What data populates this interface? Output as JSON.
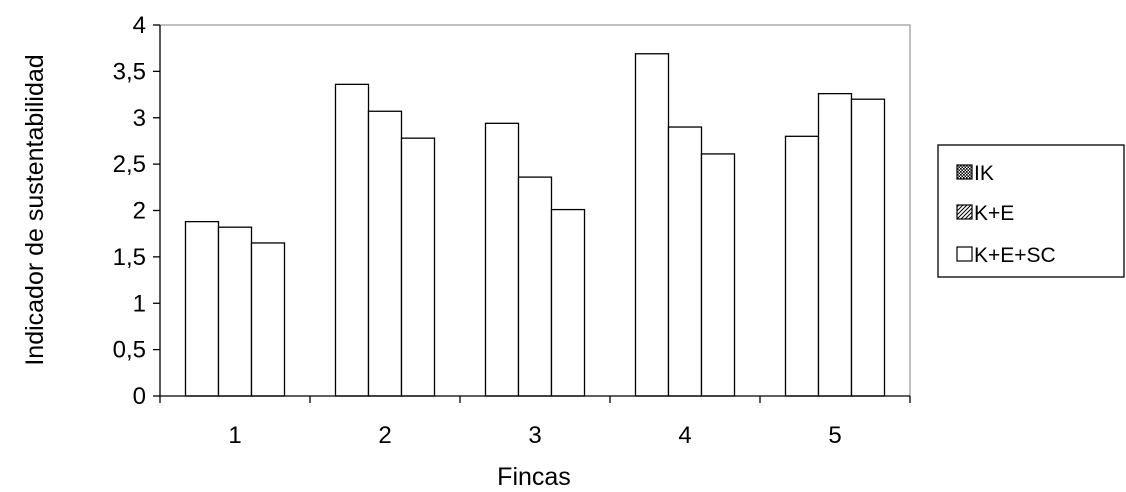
{
  "chart_data": {
    "type": "bar",
    "categories": [
      "1",
      "2",
      "3",
      "4",
      "5"
    ],
    "series": [
      {
        "name": "IK",
        "values": [
          1.88,
          3.36,
          2.94,
          3.69,
          2.8
        ],
        "pattern": "dense-dots"
      },
      {
        "name": "K+E",
        "values": [
          1.82,
          3.07,
          2.36,
          2.9,
          3.26
        ],
        "pattern": "diagonal-hatch"
      },
      {
        "name": "K+E+SC",
        "values": [
          1.65,
          2.78,
          2.01,
          2.61,
          3.2
        ],
        "pattern": "none"
      }
    ],
    "xlabel": "Fincas",
    "ylabel": "Indicador de sustentabilidad",
    "ylim": [
      0,
      4
    ],
    "yticks": [
      "0",
      "0,5",
      "1",
      "1,5",
      "2",
      "2,5",
      "3",
      "3,5",
      "4"
    ],
    "grid": false,
    "legend": "right",
    "colors": {
      "bar_fill": "#ffffff",
      "stroke": "#000000",
      "plot_border": "#808080"
    }
  }
}
